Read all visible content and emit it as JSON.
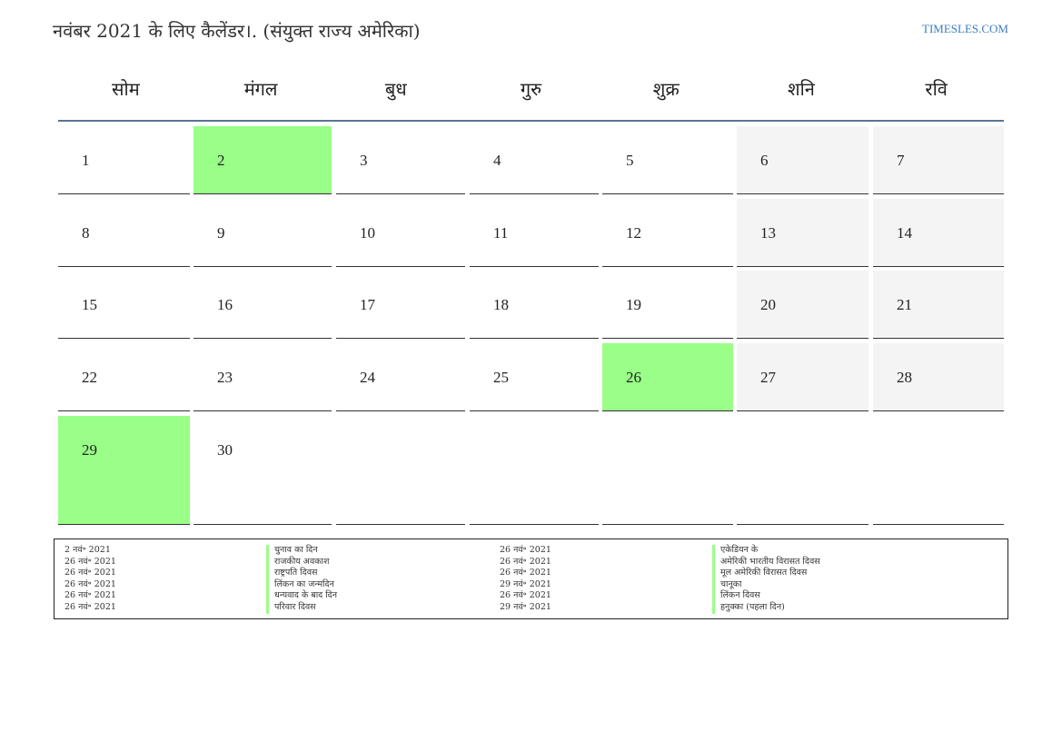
{
  "header": {
    "title": "नवंबर 2021 के लिए कैलेंडर।. (संयुक्त राज्य अमेरिका)",
    "site": "TIMESLES.COM"
  },
  "weekdays": [
    "सोम",
    "मंगल",
    "बुध",
    "गुरु",
    "शुक्र",
    "शनि",
    "रवि"
  ],
  "weeks": [
    [
      "1",
      "2",
      "3",
      "4",
      "5",
      "6",
      "7"
    ],
    [
      "8",
      "9",
      "10",
      "11",
      "12",
      "13",
      "14"
    ],
    [
      "15",
      "16",
      "17",
      "18",
      "19",
      "20",
      "21"
    ],
    [
      "22",
      "23",
      "24",
      "25",
      "26",
      "27",
      "28"
    ],
    [
      "29",
      "30",
      "",
      "",
      "",
      "",
      ""
    ]
  ],
  "highlight_color": "#99ff88",
  "weekend_color": "#f4f4f4",
  "holiday_days": [
    "2",
    "26",
    "29"
  ],
  "legend": {
    "left": [
      {
        "date": "2 नवं॰ 2021",
        "name": "चुनाव का दिन"
      },
      {
        "date": "26 नवं॰ 2021",
        "name": "राजकीय अवकाश"
      },
      {
        "date": "26 नवं॰ 2021",
        "name": "राष्ट्रपति दिवस"
      },
      {
        "date": "26 नवं॰ 2021",
        "name": "लिंकन का जन्मदिन"
      },
      {
        "date": "26 नवं॰ 2021",
        "name": "धन्यवाद के बाद दिन"
      },
      {
        "date": "26 नवं॰ 2021",
        "name": "परिवार दिवस"
      }
    ],
    "right": [
      {
        "date": "26 नवं॰ 2021",
        "name": "एकेडियन के"
      },
      {
        "date": "26 नवं॰ 2021",
        "name": "अमेरिकी भारतीय विरासत दिवस"
      },
      {
        "date": "26 नवं॰ 2021",
        "name": "मूल अमेरिकी विरासत दिवस"
      },
      {
        "date": "29 नवं॰ 2021",
        "name": "चानूका"
      },
      {
        "date": "26 नवं॰ 2021",
        "name": "लिंकन दिवस"
      },
      {
        "date": "29 नवं॰ 2021",
        "name": "हनुक्का (पहला दिन)"
      }
    ]
  }
}
